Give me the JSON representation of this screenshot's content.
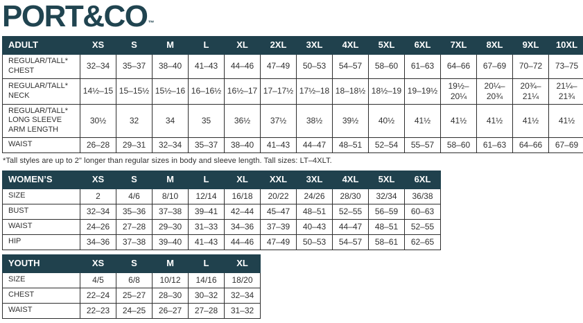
{
  "logo": {
    "text": "PORT&CO",
    "tm": "™"
  },
  "colors": {
    "brand": "#204450",
    "table_header_bg": "#20414d",
    "table_border": "#2d2d2d",
    "text": "#303030"
  },
  "footnote": "*Tall styles are up to 2\" longer than regular sizes in body and sleeve length. Tall sizes: LT–4XLT.",
  "adult_table": {
    "title": "ADULT",
    "columns": [
      "XS",
      "S",
      "M",
      "L",
      "XL",
      "2XL",
      "3XL",
      "4XL",
      "5XL",
      "6XL",
      "7XL",
      "8XL",
      "9XL",
      "10XL"
    ],
    "rows": [
      {
        "label": [
          "REGULAR/TALL*",
          "CHEST"
        ],
        "values": [
          "32–34",
          "35–37",
          "38–40",
          "41–43",
          "44–46",
          "47–49",
          "50–53",
          "54–57",
          "58–60",
          "61–63",
          "64–66",
          "67–69",
          "70–72",
          "73–75"
        ]
      },
      {
        "label": [
          "REGULAR/TALL*",
          "NECK"
        ],
        "values": [
          "14½–15",
          "15–15½",
          "15½–16",
          "16–16½",
          "16½–17",
          "17–17½",
          "17½–18",
          "18–18½",
          "18½–19",
          "19–19½",
          "19½–20¼",
          "20¼–20¾",
          "20¾–21¼",
          "21¼–21¾"
        ]
      },
      {
        "label": [
          "REGULAR/TALL*",
          "LONG SLEEVE",
          "ARM LENGTH"
        ],
        "values": [
          "30½",
          "32",
          "34",
          "35",
          "36½",
          "37½",
          "38½",
          "39½",
          "40½",
          "41½",
          "41½",
          "41½",
          "41½",
          "41½"
        ]
      },
      {
        "label": [
          "WAIST"
        ],
        "values": [
          "26–28",
          "29–31",
          "32–34",
          "35–37",
          "38–40",
          "41–43",
          "44–47",
          "48–51",
          "52–54",
          "55–57",
          "58–60",
          "61–63",
          "64–66",
          "67–69"
        ]
      }
    ]
  },
  "womens_table": {
    "title": "WOMEN’S",
    "columns": [
      "XS",
      "S",
      "M",
      "L",
      "XL",
      "XXL",
      "3XL",
      "4XL",
      "5XL",
      "6XL"
    ],
    "rows": [
      {
        "label": [
          "SIZE"
        ],
        "values": [
          "2",
          "4/6",
          "8/10",
          "12/14",
          "16/18",
          "20/22",
          "24/26",
          "28/30",
          "32/34",
          "36/38"
        ]
      },
      {
        "label": [
          "BUST"
        ],
        "values": [
          "32–34",
          "35–36",
          "37–38",
          "39–41",
          "42–44",
          "45–47",
          "48–51",
          "52–55",
          "56–59",
          "60–63"
        ]
      },
      {
        "label": [
          "WAIST"
        ],
        "values": [
          "24–26",
          "27–28",
          "29–30",
          "31–33",
          "34–36",
          "37–39",
          "40–43",
          "44–47",
          "48–51",
          "52–55"
        ]
      },
      {
        "label": [
          "HIP"
        ],
        "values": [
          "34–36",
          "37–38",
          "39–40",
          "41–43",
          "44–46",
          "47–49",
          "50–53",
          "54–57",
          "58–61",
          "62–65"
        ]
      }
    ]
  },
  "youth_table": {
    "title": "YOUTH",
    "columns": [
      "XS",
      "S",
      "M",
      "L",
      "XL"
    ],
    "rows": [
      {
        "label": [
          "SIZE"
        ],
        "values": [
          "4/5",
          "6/8",
          "10/12",
          "14/16",
          "18/20"
        ]
      },
      {
        "label": [
          "CHEST"
        ],
        "values": [
          "22–24",
          "25–27",
          "28–30",
          "30–32",
          "32–34"
        ]
      },
      {
        "label": [
          "WAIST"
        ],
        "values": [
          "22–23",
          "24–25",
          "26–27",
          "27–28",
          "31–32"
        ]
      }
    ]
  }
}
